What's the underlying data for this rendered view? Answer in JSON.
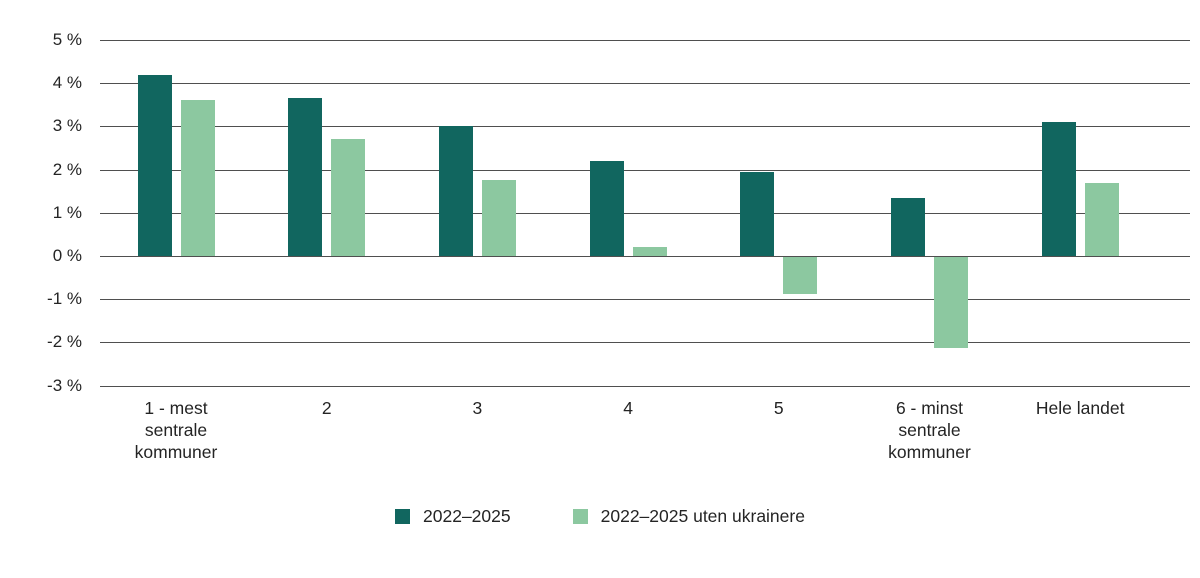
{
  "chart_data": {
    "type": "bar",
    "title": "",
    "xlabel": "",
    "ylabel": "",
    "categories": [
      "1 - mest\nsentrale\nkommuner",
      "2",
      "3",
      "4",
      "5",
      "6 - minst\nsentrale\nkommuner",
      "Hele landet"
    ],
    "series": [
      {
        "name": "2022–2025",
        "color": "#11665f",
        "values": [
          4.2,
          3.65,
          3.0,
          2.2,
          1.95,
          1.35,
          3.1
        ]
      },
      {
        "name": "2022–2025 uten ukrainere",
        "color": "#8cc8a0",
        "values": [
          3.6,
          2.7,
          1.75,
          0.2,
          -0.85,
          -2.1,
          1.7
        ]
      }
    ],
    "ylim": [
      -3,
      5
    ],
    "yticks": [
      5,
      4,
      3,
      2,
      1,
      0,
      -1,
      -2,
      -3
    ],
    "ytick_labels": [
      "5 %",
      "4 %",
      "3 %",
      "2 %",
      "1 %",
      "0 %",
      "-1 %",
      "-2 %",
      "-3 %"
    ],
    "grid": true,
    "legend_position": "bottom"
  },
  "colors": {
    "gridline": "#4f4f4f",
    "text": "#242424",
    "background": "#ffffff"
  }
}
